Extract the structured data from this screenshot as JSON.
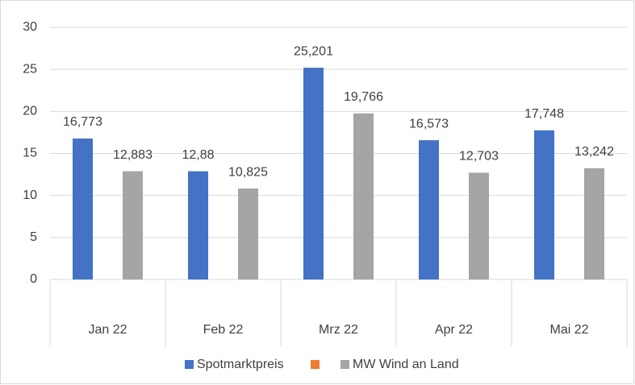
{
  "chart_data": {
    "type": "bar",
    "categories": [
      "Jan 22",
      "Feb 22",
      "Mrz 22",
      "Apr 22",
      "Mai 22"
    ],
    "series": [
      {
        "name": "Spotmarktpreis",
        "color": "#4472c4",
        "values": [
          16.773,
          12.88,
          25.201,
          16.573,
          17.748
        ],
        "value_labels": [
          "16,773",
          "12,88",
          "25,201",
          "16,573",
          "17,748"
        ]
      },
      {
        "name": null,
        "color": "#ed7d31",
        "values": [
          null,
          null,
          null,
          null,
          null
        ]
      },
      {
        "name": "MW Wind an Land",
        "color": "#a5a5a5",
        "values": [
          12.883,
          10.825,
          19.766,
          12.703,
          13.242
        ],
        "value_labels": [
          "12,883",
          "10,825",
          "19,766",
          "12,703",
          "13,242"
        ]
      }
    ],
    "ylim": [
      0,
      30
    ],
    "yticks": [
      0,
      5,
      10,
      15,
      20,
      25,
      30
    ],
    "grid": true,
    "legend": "bottom"
  }
}
